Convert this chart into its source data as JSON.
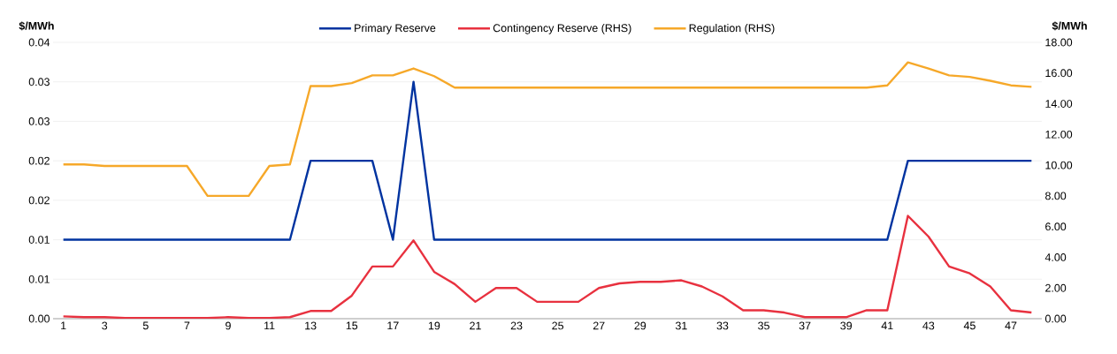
{
  "chart_data": {
    "type": "line",
    "ylabel": "$/MWh",
    "y2label": "$/MWh",
    "categories": [
      "1",
      null,
      "3",
      null,
      "5",
      null,
      "7",
      null,
      "9",
      null,
      "11",
      null,
      "13",
      null,
      "15",
      null,
      "17",
      null,
      "19",
      null,
      "21",
      null,
      "23",
      null,
      "25",
      null,
      "27",
      null,
      "29",
      null,
      "31",
      null,
      "33",
      null,
      "35",
      null,
      "37",
      null,
      "39",
      null,
      "41",
      null,
      "43",
      null,
      "45",
      null,
      "47",
      null
    ],
    "series": [
      {
        "name": "Primary Reserve",
        "color": "#0033a0",
        "axis": "y",
        "values": [
          0.01,
          0.01,
          0.01,
          0.01,
          0.01,
          0.01,
          0.01,
          0.01,
          0.01,
          0.01,
          0.01,
          0.01,
          0.02,
          0.02,
          0.02,
          0.02,
          0.01,
          0.03,
          0.01,
          0.01,
          0.01,
          0.01,
          0.01,
          0.01,
          0.01,
          0.01,
          0.01,
          0.01,
          0.01,
          0.01,
          0.01,
          0.01,
          0.01,
          0.01,
          0.01,
          0.01,
          0.01,
          0.01,
          0.01,
          0.01,
          0.01,
          0.02,
          0.02,
          0.02,
          0.02,
          0.02,
          0.02,
          0.02
        ]
      },
      {
        "name": "Contingency Reserve (RHS)",
        "color": "#e8313f",
        "axis": "y2",
        "values": [
          0.15,
          0.1,
          0.1,
          0.05,
          0.05,
          0.05,
          0.05,
          0.05,
          0.1,
          0.05,
          0.05,
          0.1,
          0.5,
          0.5,
          1.5,
          3.4,
          3.4,
          5.1,
          3.05,
          2.25,
          1.1,
          2.0,
          2.0,
          1.1,
          1.1,
          1.1,
          2.0,
          2.3,
          2.4,
          2.4,
          2.5,
          2.1,
          1.45,
          0.55,
          0.55,
          0.4,
          0.1,
          0.1,
          0.1,
          0.55,
          0.55,
          6.7,
          5.35,
          3.4,
          2.95,
          2.1,
          0.55,
          0.4
        ]
      },
      {
        "name": "Regulation (RHS)",
        "color": "#f6a829",
        "axis": "y2",
        "values": [
          10.05,
          10.05,
          9.95,
          9.95,
          9.95,
          9.95,
          9.95,
          8.0,
          8.0,
          8.0,
          9.95,
          10.05,
          15.15,
          15.15,
          15.35,
          15.85,
          15.85,
          16.3,
          15.8,
          15.05,
          15.05,
          15.05,
          15.05,
          15.05,
          15.05,
          15.05,
          15.05,
          15.05,
          15.05,
          15.05,
          15.05,
          15.05,
          15.05,
          15.05,
          15.05,
          15.05,
          15.05,
          15.05,
          15.05,
          15.05,
          15.2,
          16.7,
          16.3,
          15.85,
          15.75,
          15.5,
          15.2,
          15.1
        ]
      }
    ],
    "ylim": [
      0,
      0.035
    ],
    "yticks": [
      {
        "value": 0,
        "label": "0.00"
      },
      {
        "value": 0.005,
        "label": "0.01"
      },
      {
        "value": 0.01,
        "label": "0.01"
      },
      {
        "value": 0.015,
        "label": "0.02"
      },
      {
        "value": 0.02,
        "label": "0.02"
      },
      {
        "value": 0.025,
        "label": "0.03"
      },
      {
        "value": 0.03,
        "label": "0.03"
      },
      {
        "value": 0.035,
        "label": "0.04"
      }
    ],
    "y2lim": [
      0,
      18
    ],
    "y2ticks": [
      {
        "value": 0,
        "label": "0.00"
      },
      {
        "value": 2,
        "label": "2.00"
      },
      {
        "value": 4,
        "label": "4.00"
      },
      {
        "value": 6,
        "label": "6.00"
      },
      {
        "value": 8,
        "label": "8.00"
      },
      {
        "value": 10,
        "label": "10.00"
      },
      {
        "value": 12,
        "label": "12.00"
      },
      {
        "value": 14,
        "label": "14.00"
      },
      {
        "value": 16,
        "label": "16.00"
      },
      {
        "value": 18,
        "label": "18.00"
      }
    ],
    "grid": "y",
    "legend": "top",
    "line_style": "solid"
  }
}
